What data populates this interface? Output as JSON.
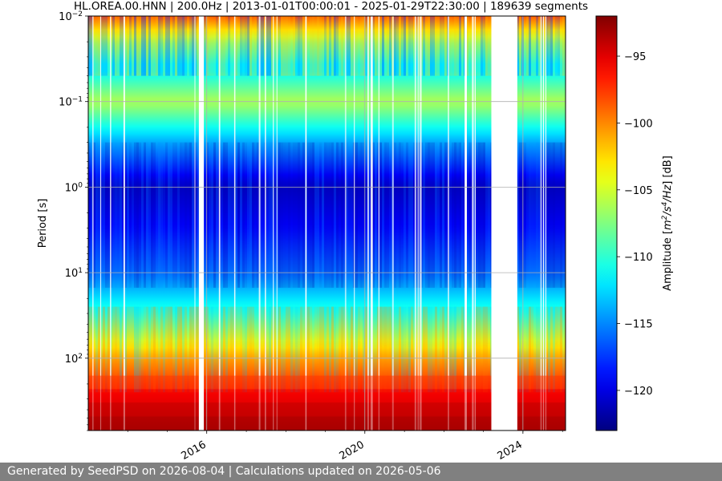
{
  "chart_data": {
    "type": "heatmap",
    "title": "HL.OREA.00.HNN | 200.0Hz | 2013-01-01T00:00:01 - 2025-01-29T22:30:00 | 189639 segments",
    "ylabel": "Period [s]",
    "xlabel": "",
    "yscale": "log",
    "y_inverted": true,
    "ylim": [
      0.01,
      700
    ],
    "xlim": [
      "2013-01-01",
      "2025-01-29"
    ],
    "x_ticks": [
      {
        "value": "2016-01-01",
        "label": "2016"
      },
      {
        "value": "2020-01-01",
        "label": "2020"
      },
      {
        "value": "2024-01-01",
        "label": "2024"
      }
    ],
    "y_ticks": [
      {
        "value": 0.01,
        "base": "10",
        "exp": "−2"
      },
      {
        "value": 0.1,
        "base": "10",
        "exp": "−1"
      },
      {
        "value": 1,
        "base": "10",
        "exp": "0"
      },
      {
        "value": 10,
        "base": "10",
        "exp": "1"
      },
      {
        "value": 100,
        "base": "10",
        "exp": "2"
      }
    ],
    "grid": true,
    "colormap": "jet",
    "colorbar": {
      "label_prefix": "Amplitude [",
      "label_unit_html": "m<tspan baseline-shift='super' font-size='9'>2</tspan>/s<tspan baseline-shift='super' font-size='9'>4</tspan>/Hz",
      "label_suffix": "] [dB]",
      "range": [
        -123,
        -92
      ],
      "ticks": [
        -95,
        -100,
        -105,
        -110,
        -115,
        -120
      ],
      "tick_labels": [
        "−95",
        "−100",
        "−105",
        "−110",
        "−115",
        "−120"
      ]
    },
    "data_gaps": [
      {
        "start": "2015-10-20",
        "end": "2015-12-05"
      },
      {
        "start": "2023-03-15",
        "end": "2023-11-10"
      }
    ],
    "amplitude_profile": [
      {
        "period": 0.01,
        "db": -98
      },
      {
        "period": 0.02,
        "db": -107
      },
      {
        "period": 0.04,
        "db": -112
      },
      {
        "period": 0.1,
        "db": -106
      },
      {
        "period": 0.3,
        "db": -114
      },
      {
        "period": 1,
        "db": -121
      },
      {
        "period": 3,
        "db": -119
      },
      {
        "period": 10,
        "db": -116
      },
      {
        "period": 30,
        "db": -110
      },
      {
        "period": 100,
        "db": -101
      },
      {
        "period": 300,
        "db": -95
      },
      {
        "period": 700,
        "db": -93
      }
    ]
  },
  "footer": {
    "text": "Generated by SeedPSD on 2026-08-04 | Calculations updated on 2026-05-06"
  }
}
